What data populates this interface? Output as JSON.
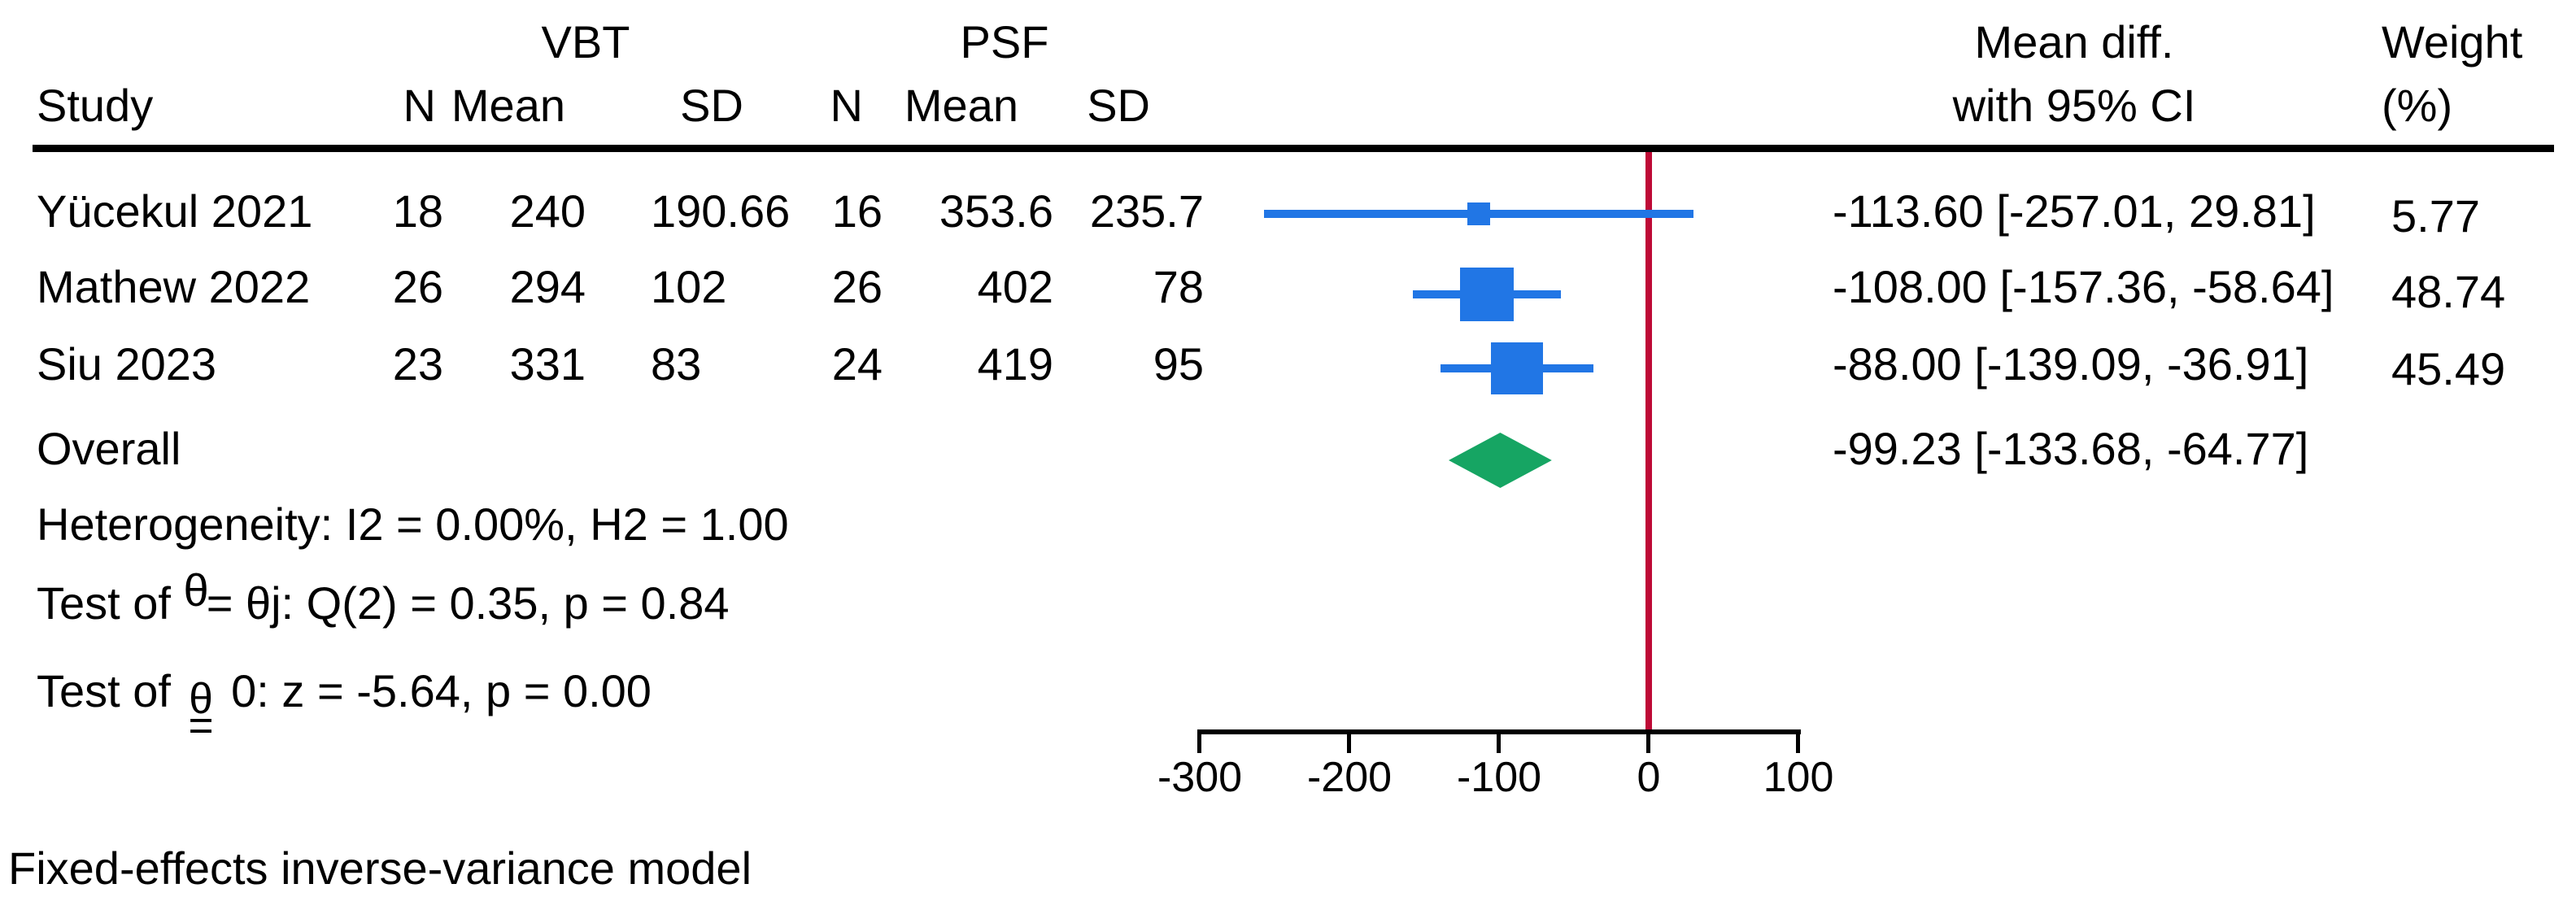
{
  "header": {
    "group_vbt": "VBT",
    "group_psf": "PSF",
    "col_study": "Study",
    "col_n": "N",
    "col_mean": "Mean",
    "col_sd": "SD",
    "effect_line1": "Mean diff.",
    "effect_line2": "with 95% CI",
    "weight_line1": "Weight",
    "weight_line2": "(%)"
  },
  "studies": [
    {
      "name": "Yücekul 2021",
      "n1": "18",
      "mean1": "240",
      "sd1": "190.66",
      "n2": "16",
      "mean2": "353.6",
      "sd2": "235.7",
      "ci_text": "-113.60 [-257.01, 29.81]",
      "weight_text": "5.77"
    },
    {
      "name": "Mathew 2022",
      "n1": "26",
      "mean1": "294",
      "sd1": "102",
      "n2": "26",
      "mean2": "402",
      "sd2": "78",
      "ci_text": "-108.00 [-157.36, -58.64]",
      "weight_text": "48.74"
    },
    {
      "name": "Siu 2023",
      "n1": "23",
      "mean1": "331",
      "sd1": "83",
      "n2": "24",
      "mean2": "419",
      "sd2": "95",
      "ci_text": "-88.00 [-139.09, -36.91]",
      "weight_text": "45.49"
    }
  ],
  "overall": {
    "label": "Overall",
    "ci_text": "-99.23 [-133.68, -64.77]"
  },
  "stats": {
    "heterogeneity": "Heterogeneity: I2 = 0.00%, H2 = 1.00",
    "test_prefix": "Test of ",
    "theta": "θ",
    "eq": "=",
    "test_group_rest": " θj: Q(2) = 0.35, p = 0.84",
    "test_zero_rest": " 0: z = -5.64, p = 0.00"
  },
  "note": "Fixed-effects inverse-variance model",
  "colors": {
    "estimate_blue": "#2176E5",
    "overall_green": "#16A563",
    "zero_line_red": "#BE0A36",
    "axis_black": "#000000"
  },
  "chart_data": {
    "type": "forest",
    "effect_label": "Mean diff. with 95% CI",
    "model_note": "Fixed-effects inverse-variance model",
    "x_ticks": [
      -300,
      -200,
      -100,
      0,
      100
    ],
    "xlim": [
      -300,
      100
    ],
    "zero_line": 0,
    "studies": [
      {
        "name": "Yücekul 2021",
        "vbt": {
          "n": 18,
          "mean": 240,
          "sd": 190.66
        },
        "psf": {
          "n": 16,
          "mean": 353.6,
          "sd": 235.7
        },
        "mean_diff": -113.6,
        "ci_low": -257.01,
        "ci_high": 29.81,
        "weight_pct": 5.77
      },
      {
        "name": "Mathew 2022",
        "vbt": {
          "n": 26,
          "mean": 294,
          "sd": 102
        },
        "psf": {
          "n": 26,
          "mean": 402,
          "sd": 78
        },
        "mean_diff": -108.0,
        "ci_low": -157.36,
        "ci_high": -58.64,
        "weight_pct": 48.74
      },
      {
        "name": "Siu 2023",
        "vbt": {
          "n": 23,
          "mean": 331,
          "sd": 83
        },
        "psf": {
          "n": 24,
          "mean": 419,
          "sd": 95
        },
        "mean_diff": -88.0,
        "ci_low": -139.09,
        "ci_high": -36.91,
        "weight_pct": 45.49
      }
    ],
    "overall": {
      "mean_diff": -99.23,
      "ci_low": -133.68,
      "ci_high": -64.77
    },
    "heterogeneity": {
      "I2_pct": 0.0,
      "H2": 1.0
    },
    "test_group_equality": {
      "Q_df": 2,
      "Q": 0.35,
      "p": 0.84
    },
    "test_zero": {
      "z": -5.64,
      "p": 0.0
    }
  }
}
